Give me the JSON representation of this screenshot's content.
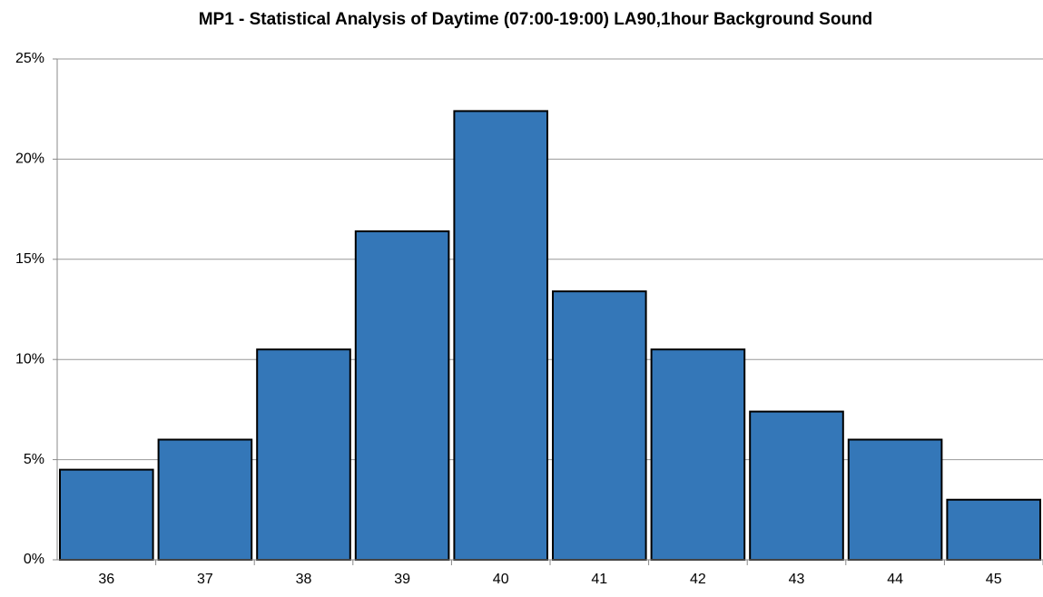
{
  "chart_data": {
    "type": "bar",
    "title": "MP1 - Statistical Analysis of Daytime (07:00-19:00) LA90,1hour Background Sound",
    "categories": [
      "36",
      "37",
      "38",
      "39",
      "40",
      "41",
      "42",
      "43",
      "44",
      "45"
    ],
    "values": [
      4.5,
      6.0,
      10.5,
      16.4,
      22.4,
      13.4,
      10.5,
      7.4,
      6.0,
      3.0
    ],
    "color": "#3477b8",
    "ylim": [
      0,
      25
    ],
    "yticks": [
      {
        "value": 0,
        "label": "0%"
      },
      {
        "value": 5,
        "label": "5%"
      },
      {
        "value": 10,
        "label": "10%"
      },
      {
        "value": 15,
        "label": "15%"
      },
      {
        "value": 20,
        "label": "20%"
      },
      {
        "value": 25,
        "label": "25%"
      }
    ],
    "grid": true
  }
}
